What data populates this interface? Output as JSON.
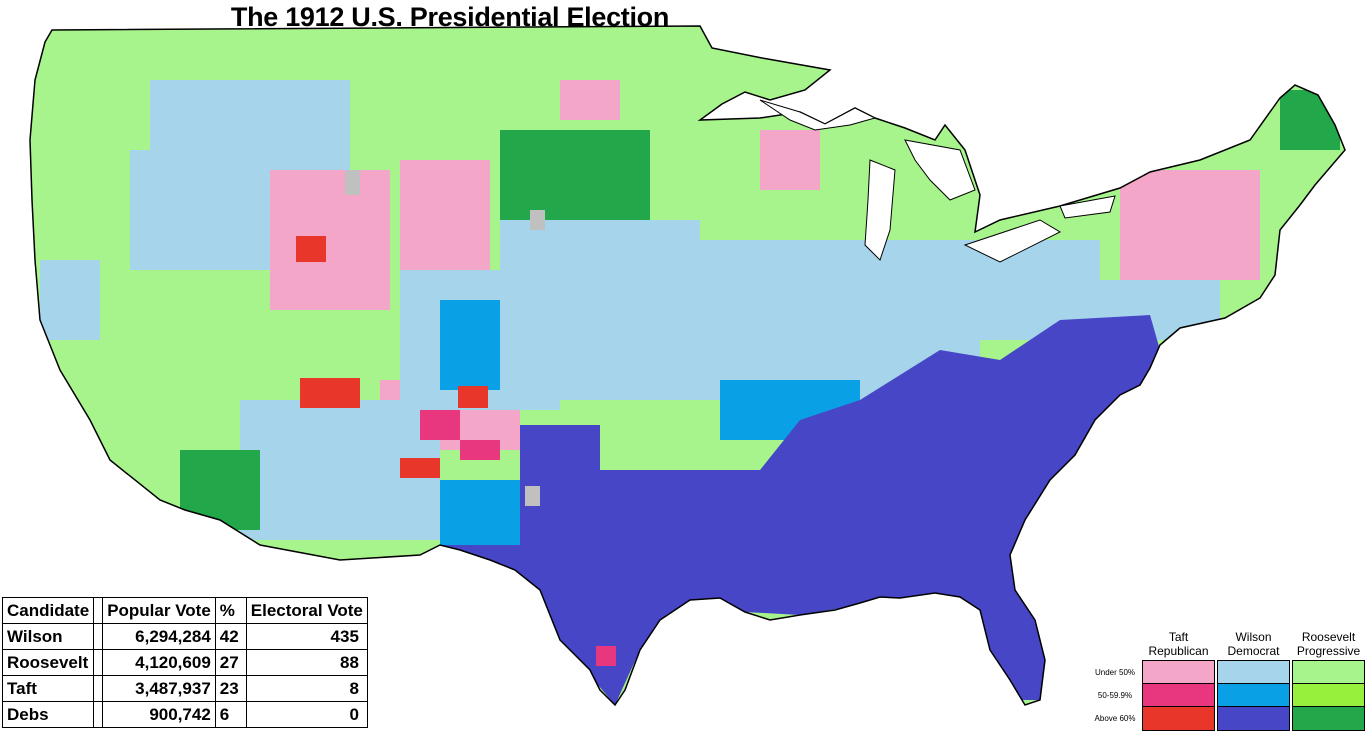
{
  "title": "The 1912 U.S. Presidential Election",
  "results_table": {
    "headers": {
      "candidate": "Candidate",
      "popular_vote": "Popular Vote",
      "percent": "%",
      "electoral_vote": "Electoral Vote"
    },
    "rows": [
      {
        "candidate": "Wilson",
        "popular_vote": "6,294,284",
        "percent": "42",
        "electoral_vote": "435"
      },
      {
        "candidate": "Roosevelt",
        "popular_vote": "4,120,609",
        "percent": "27",
        "electoral_vote": "88"
      },
      {
        "candidate": "Taft",
        "popular_vote": "3,487,937",
        "percent": "23",
        "electoral_vote": "8"
      },
      {
        "candidate": "Debs",
        "popular_vote": "900,742",
        "percent": "6",
        "electoral_vote": "0"
      }
    ]
  },
  "legend": {
    "columns": [
      {
        "line1": "Taft",
        "line2": "Republican"
      },
      {
        "line1": "Wilson",
        "line2": "Democrat"
      },
      {
        "line1": "Roosevelt",
        "line2": "Progressive"
      }
    ],
    "rows": [
      "Under 50%",
      "50-59.9%",
      "Above 60%"
    ],
    "colors": {
      "taft": [
        "#f4a6c8",
        "#e8367f",
        "#e8372a"
      ],
      "wilson": [
        "#a6d4ea",
        "#0aa0e6",
        "#4646c6"
      ],
      "roosevelt": [
        "#a8f48c",
        "#96f03c",
        "#22a84a"
      ]
    }
  },
  "map": {
    "no_data_color": "#c0c0c0",
    "water_color": "#ffffff"
  }
}
